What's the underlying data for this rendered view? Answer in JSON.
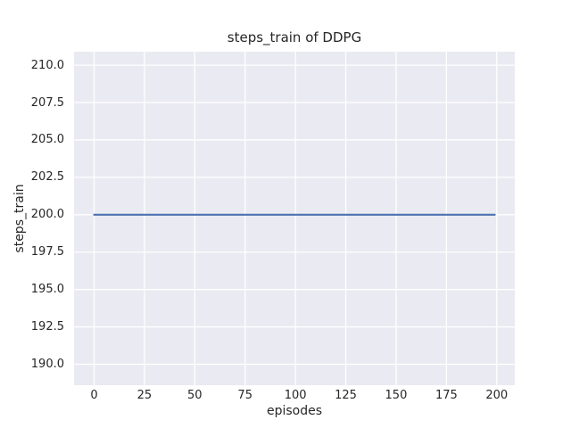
{
  "chart_data": {
    "type": "line",
    "title": "steps_train of DDPG",
    "xlabel": "episodes",
    "ylabel": "steps_train",
    "x_ticks": [
      0,
      25,
      50,
      75,
      100,
      125,
      150,
      175,
      200
    ],
    "x_tick_labels": [
      "0",
      "25",
      "50",
      "75",
      "100",
      "125",
      "150",
      "175",
      "200"
    ],
    "y_ticks": [
      190.0,
      192.5,
      195.0,
      197.5,
      200.0,
      202.5,
      205.0,
      207.5,
      210.0
    ],
    "y_tick_labels": [
      "190.0",
      "192.5",
      "195.0",
      "197.5",
      "200.0",
      "202.5",
      "205.0",
      "207.5",
      "210.0"
    ],
    "xlim": [
      -9.95,
      208.95
    ],
    "ylim": [
      188.6,
      210.9
    ],
    "grid": true,
    "legend_position": "none",
    "series": [
      {
        "name": "steps_train",
        "x": [
          0,
          199
        ],
        "y": [
          200,
          200
        ],
        "color": "#4c72b0",
        "linewidth": 2.2
      }
    ],
    "colors": {
      "figure_background": "#ffffff",
      "axes_background": "#eaeaf2",
      "grid": "#ffffff",
      "text": "#262626",
      "line": "#4c72b0"
    }
  }
}
